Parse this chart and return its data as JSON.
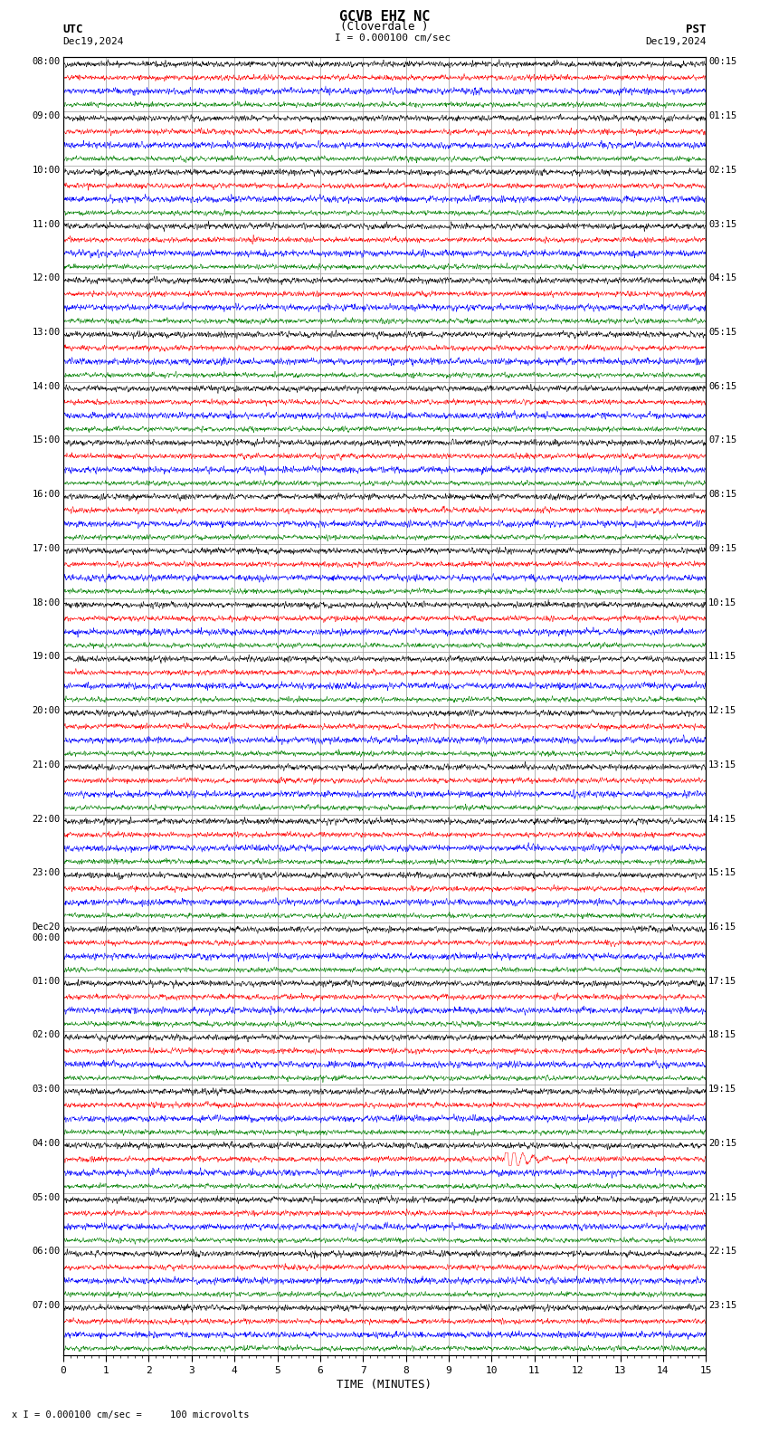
{
  "title_line1": "GCVB EHZ NC",
  "title_line2": "(Cloverdale )",
  "scale_label": "I = 0.000100 cm/sec",
  "left_label_top": "UTC",
  "left_label_date": "Dec19,2024",
  "right_label_top": "PST",
  "right_label_date": "Dec19,2024",
  "bottom_label": "TIME (MINUTES)",
  "footer_label": "x I = 0.000100 cm/sec =     100 microvolts",
  "utc_times_left": [
    "08:00",
    "09:00",
    "10:00",
    "11:00",
    "12:00",
    "13:00",
    "14:00",
    "15:00",
    "16:00",
    "17:00",
    "18:00",
    "19:00",
    "20:00",
    "21:00",
    "22:00",
    "23:00",
    "Dec20\n00:00",
    "01:00",
    "02:00",
    "03:00",
    "04:00",
    "05:00",
    "06:00",
    "07:00"
  ],
  "pst_times_right": [
    "00:15",
    "01:15",
    "02:15",
    "03:15",
    "04:15",
    "05:15",
    "06:15",
    "07:15",
    "08:15",
    "09:15",
    "10:15",
    "11:15",
    "12:15",
    "13:15",
    "14:15",
    "15:15",
    "16:15",
    "17:15",
    "18:15",
    "19:15",
    "20:15",
    "21:15",
    "22:15",
    "23:15"
  ],
  "colors": [
    "black",
    "red",
    "blue",
    "green"
  ],
  "num_rows": 24,
  "traces_per_row": 4,
  "minutes": 15,
  "bg_color": "#ffffff",
  "grid_color": "#999999",
  "earthquake_row": 20,
  "earthquake_minute": 10.3,
  "earthquake_small_row": 19,
  "earthquake_small_minute": 3.3
}
